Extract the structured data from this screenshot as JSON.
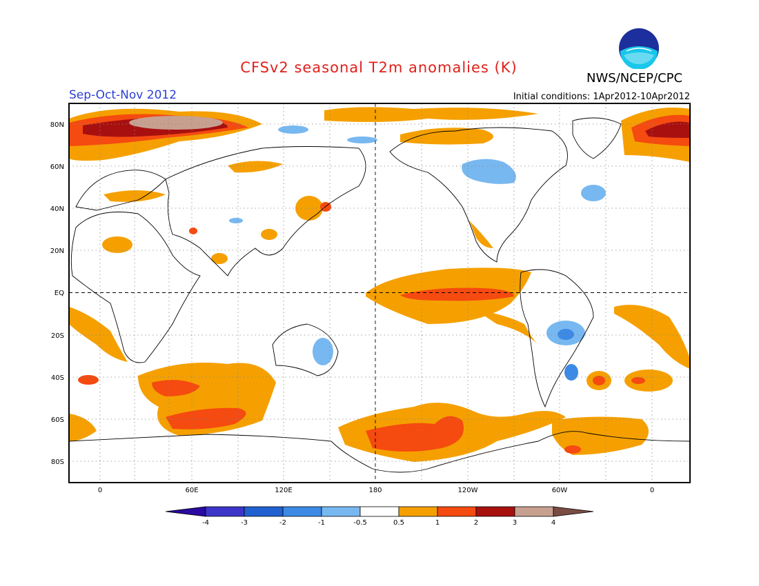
{
  "title": "CFSv2 seasonal T2m anomalies (K)",
  "agency": "NWS/NCEP/CPC",
  "logo_text": "NOAA",
  "season": "Sep-Oct-Nov 2012",
  "initial_conditions": "Initial conditions: 1Apr2012-10Apr2012",
  "map": {
    "projection": "equirectangular",
    "lon_range": [
      -20,
      340
    ],
    "lat_range": [
      -90,
      90
    ],
    "lat_labels": [
      "80N",
      "60N",
      "40N",
      "20N",
      "EQ",
      "20S",
      "40S",
      "60S",
      "80S"
    ],
    "lon_labels": [
      "0",
      "60E",
      "120E",
      "180",
      "120W",
      "60W",
      "0"
    ],
    "grid": "dotted"
  },
  "colorbar": {
    "tick_labels": [
      "-4",
      "-3",
      "-2",
      "-1",
      "-0.5",
      "0.5",
      "1",
      "2",
      "3",
      "4"
    ],
    "colors": [
      "#2a0aa0",
      "#3d35c8",
      "#2060d0",
      "#3c8ae6",
      "#78b8f0",
      "#ffffff",
      "#f5a000",
      "#f54a10",
      "#a81010",
      "#c8a090",
      "#7a4c44"
    ]
  },
  "colors": {
    "title": "#e0201a",
    "season": "#2a3fd6"
  }
}
